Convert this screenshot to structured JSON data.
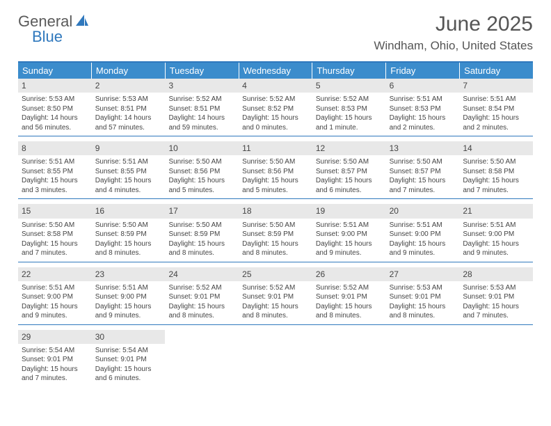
{
  "logo": {
    "word1": "General",
    "word2": "Blue"
  },
  "title": "June 2025",
  "location": "Windham, Ohio, United States",
  "colors": {
    "header_bg": "#3b8ccc",
    "divider": "#2f78bd",
    "daynum_bg": "#e8e8e8",
    "text": "#444444",
    "page_bg": "#ffffff"
  },
  "typography": {
    "title_fontsize": 30,
    "location_fontsize": 17,
    "dayhead_fontsize": 13,
    "body_fontsize": 10
  },
  "day_headers": [
    "Sunday",
    "Monday",
    "Tuesday",
    "Wednesday",
    "Thursday",
    "Friday",
    "Saturday"
  ],
  "weeks": [
    [
      {
        "n": "1",
        "sunrise": "5:53 AM",
        "sunset": "8:50 PM",
        "daylight": "14 hours and 56 minutes."
      },
      {
        "n": "2",
        "sunrise": "5:53 AM",
        "sunset": "8:51 PM",
        "daylight": "14 hours and 57 minutes."
      },
      {
        "n": "3",
        "sunrise": "5:52 AM",
        "sunset": "8:51 PM",
        "daylight": "14 hours and 59 minutes."
      },
      {
        "n": "4",
        "sunrise": "5:52 AM",
        "sunset": "8:52 PM",
        "daylight": "15 hours and 0 minutes."
      },
      {
        "n": "5",
        "sunrise": "5:52 AM",
        "sunset": "8:53 PM",
        "daylight": "15 hours and 1 minute."
      },
      {
        "n": "6",
        "sunrise": "5:51 AM",
        "sunset": "8:53 PM",
        "daylight": "15 hours and 2 minutes."
      },
      {
        "n": "7",
        "sunrise": "5:51 AM",
        "sunset": "8:54 PM",
        "daylight": "15 hours and 2 minutes."
      }
    ],
    [
      {
        "n": "8",
        "sunrise": "5:51 AM",
        "sunset": "8:55 PM",
        "daylight": "15 hours and 3 minutes."
      },
      {
        "n": "9",
        "sunrise": "5:51 AM",
        "sunset": "8:55 PM",
        "daylight": "15 hours and 4 minutes."
      },
      {
        "n": "10",
        "sunrise": "5:50 AM",
        "sunset": "8:56 PM",
        "daylight": "15 hours and 5 minutes."
      },
      {
        "n": "11",
        "sunrise": "5:50 AM",
        "sunset": "8:56 PM",
        "daylight": "15 hours and 5 minutes."
      },
      {
        "n": "12",
        "sunrise": "5:50 AM",
        "sunset": "8:57 PM",
        "daylight": "15 hours and 6 minutes."
      },
      {
        "n": "13",
        "sunrise": "5:50 AM",
        "sunset": "8:57 PM",
        "daylight": "15 hours and 7 minutes."
      },
      {
        "n": "14",
        "sunrise": "5:50 AM",
        "sunset": "8:58 PM",
        "daylight": "15 hours and 7 minutes."
      }
    ],
    [
      {
        "n": "15",
        "sunrise": "5:50 AM",
        "sunset": "8:58 PM",
        "daylight": "15 hours and 7 minutes."
      },
      {
        "n": "16",
        "sunrise": "5:50 AM",
        "sunset": "8:59 PM",
        "daylight": "15 hours and 8 minutes."
      },
      {
        "n": "17",
        "sunrise": "5:50 AM",
        "sunset": "8:59 PM",
        "daylight": "15 hours and 8 minutes."
      },
      {
        "n": "18",
        "sunrise": "5:50 AM",
        "sunset": "8:59 PM",
        "daylight": "15 hours and 8 minutes."
      },
      {
        "n": "19",
        "sunrise": "5:51 AM",
        "sunset": "9:00 PM",
        "daylight": "15 hours and 9 minutes."
      },
      {
        "n": "20",
        "sunrise": "5:51 AM",
        "sunset": "9:00 PM",
        "daylight": "15 hours and 9 minutes."
      },
      {
        "n": "21",
        "sunrise": "5:51 AM",
        "sunset": "9:00 PM",
        "daylight": "15 hours and 9 minutes."
      }
    ],
    [
      {
        "n": "22",
        "sunrise": "5:51 AM",
        "sunset": "9:00 PM",
        "daylight": "15 hours and 9 minutes."
      },
      {
        "n": "23",
        "sunrise": "5:51 AM",
        "sunset": "9:00 PM",
        "daylight": "15 hours and 9 minutes."
      },
      {
        "n": "24",
        "sunrise": "5:52 AM",
        "sunset": "9:01 PM",
        "daylight": "15 hours and 8 minutes."
      },
      {
        "n": "25",
        "sunrise": "5:52 AM",
        "sunset": "9:01 PM",
        "daylight": "15 hours and 8 minutes."
      },
      {
        "n": "26",
        "sunrise": "5:52 AM",
        "sunset": "9:01 PM",
        "daylight": "15 hours and 8 minutes."
      },
      {
        "n": "27",
        "sunrise": "5:53 AM",
        "sunset": "9:01 PM",
        "daylight": "15 hours and 8 minutes."
      },
      {
        "n": "28",
        "sunrise": "5:53 AM",
        "sunset": "9:01 PM",
        "daylight": "15 hours and 7 minutes."
      }
    ],
    [
      {
        "n": "29",
        "sunrise": "5:54 AM",
        "sunset": "9:01 PM",
        "daylight": "15 hours and 7 minutes."
      },
      {
        "n": "30",
        "sunrise": "5:54 AM",
        "sunset": "9:01 PM",
        "daylight": "15 hours and 6 minutes."
      },
      null,
      null,
      null,
      null,
      null
    ]
  ],
  "labels": {
    "sunrise": "Sunrise: ",
    "sunset": "Sunset: ",
    "daylight": "Daylight: "
  }
}
